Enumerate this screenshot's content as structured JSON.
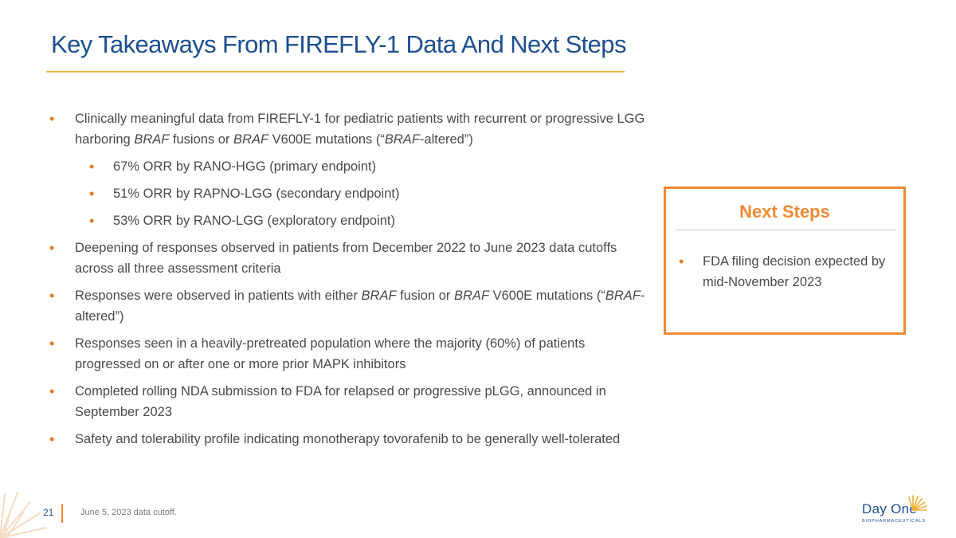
{
  "title": "Key Takeaways From FIREFLY-1 Data And Next Steps",
  "bullets": {
    "b1": {
      "t1": "Clinically meaningful data from FIREFLY-1 for pediatric patients with recurrent or progressive LGG harboring ",
      "i1": "BRAF",
      "t2": " fusions or ",
      "i2": "BRAF",
      "t3": " V600E mutations (“",
      "i3": "BRAF",
      "t4": "-altered”)"
    },
    "sub1": "67% ORR by RANO-HGG (primary endpoint)",
    "sub2": "51% ORR by RAPNO-LGG (secondary endpoint)",
    "sub3": "53% ORR by RANO-LGG (exploratory endpoint)",
    "b2": "Deepening of responses observed in patients from December 2022 to June 2023 data cutoffs across all three assessment criteria",
    "b3": {
      "t1": "Responses were observed in patients with either ",
      "i1": "BRAF",
      "t2": " fusion or ",
      "i2": "BRAF",
      "t3": " V600E mutations (“",
      "i3": "BRAF",
      "t4": "-altered”)"
    },
    "b4": "Responses seen in a heavily-pretreated population where the majority (60%) of patients progressed on or after one or more prior MAPK inhibitors",
    "b5": "Completed rolling NDA submission to FDA for relapsed or progressive pLGG, announced in September 2023",
    "b6": "Safety and tolerability profile indicating monotherapy tovorafenib to be generally well-tolerated"
  },
  "next_steps": {
    "title": "Next Steps",
    "items": [
      "FDA filing decision expected by mid-November 2023"
    ]
  },
  "footer": {
    "page_number": "21",
    "note": "June 5, 2023 data cutoff."
  },
  "logo": {
    "name": "Day One",
    "tagline": "BIOPHARMACEUTICALS"
  },
  "colors": {
    "title_blue": "#1d4f91",
    "accent_orange": "#f08a34",
    "rule_gold": "#e8b84a",
    "body_text": "#4a4a4a"
  }
}
